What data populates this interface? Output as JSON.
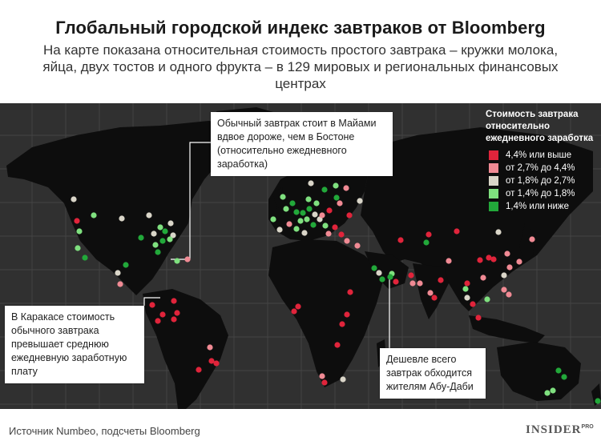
{
  "title": "Глобальный городской индекс завтраков от Bloomberg",
  "subtitle": "На карте показана относительная стоимость простого завтрака – кружки молока, яйца, двух тостов и одного фрукта – в 129 мировых и региональных финансовых центрах",
  "legend": {
    "title": "Стоимость завтрака относительно ежедневного заработка",
    "items": [
      {
        "label": "4,4% или выше",
        "color": "#e0243b"
      },
      {
        "label": "от 2,7% до 4,4%",
        "color": "#f08a94"
      },
      {
        "label": "от 1,8% до 2,7%",
        "color": "#d9d5c8"
      },
      {
        "label": "от 1,4% до 1,8%",
        "color": "#7fe07f"
      },
      {
        "label": "1,4% или ниже",
        "color": "#22a83a"
      }
    ]
  },
  "callouts": {
    "miami": "Обычный завтрак стоит в Майами вдвое дороже, чем в Бостоне (относительно ежедневного заработка)",
    "caracas": "В Каракасе стоимость обычного завтрака превышает среднюю ежедневную заработную плату",
    "abu_dhabi": "Дешевле всего завтрак обходится жителям Абу-Даби"
  },
  "footer": {
    "source": "Источник Numbeo, подсчеты Bloomberg",
    "brand": "INSIDER",
    "brand_sup": "PRO"
  },
  "colors": {
    "map_bg": "#303030",
    "land": "#0d0d0d",
    "grid": "#4a4a4a"
  }
}
